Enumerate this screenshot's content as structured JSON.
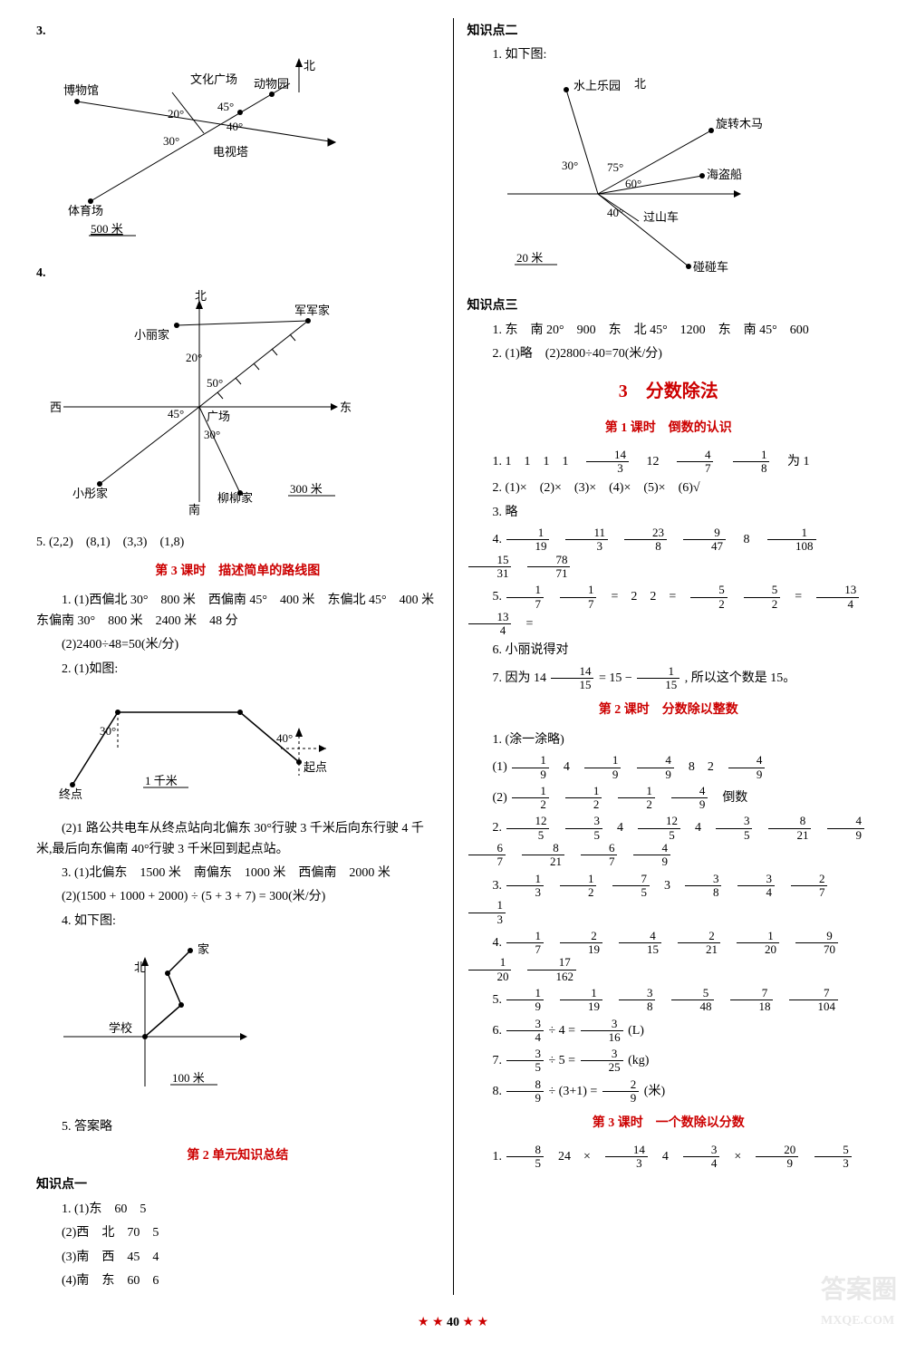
{
  "page_number": "40",
  "watermark1": "答案圈",
  "watermark2": "MXQE.COM",
  "left": {
    "q3": {
      "num": "3.",
      "labels": {
        "north": "北",
        "museum": "博物馆",
        "culture": "文化广场",
        "zoo": "动物园",
        "tv": "电视塔",
        "stadium": "体育场",
        "scale": "500 米",
        "a20": "20°",
        "a30": "30°",
        "a40": "40°",
        "a45": "45°"
      }
    },
    "q4": {
      "num": "4.",
      "labels": {
        "north": "北",
        "south": "南",
        "east": "东",
        "west": "西",
        "xiaoli": "小丽家",
        "junjun": "军军家",
        "xiaotong": "小彤家",
        "liuliu": "柳柳家",
        "plaza": "广场",
        "scale": "300 米",
        "a20": "20°",
        "a30": "30°",
        "a45": "45°",
        "a50": "50°"
      }
    },
    "q5": "5. (2,2)　(8,1)　(3,3)　(1,8)",
    "lesson3_title": "第 3 课时　描述简单的路线图",
    "l3_1a": "1. (1)西偏北 30°　800 米　西偏南 45°　400 米　东偏北 45°　400 米　东偏南 30°　800 米　2400 米　48 分",
    "l3_1b": "(2)2400÷48=50(米/分)",
    "l3_2a": "2. (1)如图:",
    "route_diagram": {
      "labels": {
        "start": "起点",
        "end": "终点",
        "scale": "1 千米",
        "a30": "30°",
        "a40": "40°"
      }
    },
    "l3_2b": "(2)1 路公共电车从终点站向北偏东 30°行驶 3 千米后向东行驶 4 千米,最后向东偏南 40°行驶 3 千米回到起点站。",
    "l3_3a": "3. (1)北偏东　1500 米　南偏东　1000 米　西偏南　2000 米",
    "l3_3b": "(2)(1500 + 1000 + 2000) ÷ (5 + 3 + 7) = 300(米/分)",
    "l3_4": "4. 如下图:",
    "home_diagram": {
      "labels": {
        "home": "家",
        "school": "学校",
        "north": "北",
        "scale": "100 米"
      }
    },
    "l3_5": "5. 答案略",
    "unit2_title": "第 2 单元知识总结",
    "kp1_title": "知识点一",
    "kp1_1": "1. (1)东　60　5",
    "kp1_2": "(2)西　北　70　5",
    "kp1_3": "(3)南　西　45　4",
    "kp1_4": "(4)南　东　60　6"
  },
  "right": {
    "kp2_title": "知识点二",
    "kp2_1": "1. 如下图:",
    "park_diagram": {
      "labels": {
        "water": "水上乐园",
        "north": "北",
        "carousel": "旋转木马",
        "pirate": "海盗船",
        "coaster": "过山车",
        "bumper": "碰碰车",
        "scale": "20 米",
        "a30": "30°",
        "a75": "75°",
        "a60": "60°",
        "a40": "40°"
      }
    },
    "kp3_title": "知识点三",
    "kp3_1": "1. 东　南 20°　900　东　北 45°　1200　东　南 45°　600",
    "kp3_2": "2. (1)略　(2)2800÷40=70(米/分)",
    "chapter3_title": "3　分数除法",
    "lesson1_title": "第 1 课时　倒数的认识",
    "c3l1_1_prefix": "1. 1　1　1　1　",
    "c3l1_1_f1": {
      "n": "14",
      "d": "3"
    },
    "c3l1_1_mid1": "　12　",
    "c3l1_1_f2": {
      "n": "4",
      "d": "7"
    },
    "c3l1_1_f3": {
      "n": "1",
      "d": "8"
    },
    "c3l1_1_suffix": "　为 1",
    "c3l1_2": "2. (1)×　(2)×　(3)×　(4)×　(5)×　(6)√",
    "c3l1_3": "3. 略",
    "c3l1_4_label": "4.",
    "c3l1_4_fracs": [
      {
        "n": "1",
        "d": "19"
      },
      {
        "n": "11",
        "d": "3"
      },
      {
        "n": "23",
        "d": "8"
      },
      {
        "n": "9",
        "d": "47"
      }
    ],
    "c3l1_4_mid": "　8　",
    "c3l1_4_fracs2": [
      {
        "n": "1",
        "d": "108"
      },
      {
        "n": "15",
        "d": "31"
      },
      {
        "n": "78",
        "d": "71"
      }
    ],
    "c3l1_5_label": "5.",
    "c3l1_5_parts": [
      {
        "f": {
          "n": "1",
          "d": "7"
        }
      },
      {
        "f": {
          "n": "1",
          "d": "7"
        }
      },
      {
        "t": "="
      },
      {
        "t": "2"
      },
      {
        "t": "2"
      },
      {
        "t": "="
      },
      {
        "f": {
          "n": "5",
          "d": "2"
        }
      },
      {
        "f": {
          "n": "5",
          "d": "2"
        }
      },
      {
        "t": "="
      },
      {
        "f": {
          "n": "13",
          "d": "4"
        }
      },
      {
        "f": {
          "n": "13",
          "d": "4"
        }
      },
      {
        "t": "="
      }
    ],
    "c3l1_6": "6. 小丽说得对",
    "c3l1_7_pre": "7. 因为 14",
    "c3l1_7_f1": {
      "n": "14",
      "d": "15"
    },
    "c3l1_7_mid": " = 15 − ",
    "c3l1_7_f2": {
      "n": "1",
      "d": "15"
    },
    "c3l1_7_suf": ", 所以这个数是 15。",
    "lesson2_title": "第 2 课时　分数除以整数",
    "c3l2_1": "1. (涂一涂略)",
    "c3l2_1a_label": "(1)",
    "c3l2_1a": [
      {
        "f": {
          "n": "1",
          "d": "9"
        }
      },
      {
        "t": "4"
      },
      {
        "f": {
          "n": "1",
          "d": "9"
        }
      },
      {
        "f": {
          "n": "4",
          "d": "9"
        }
      },
      {
        "t": "8"
      },
      {
        "t": "2"
      },
      {
        "f": {
          "n": "4",
          "d": "9"
        }
      }
    ],
    "c3l2_1b_label": "(2)",
    "c3l2_1b": [
      {
        "f": {
          "n": "1",
          "d": "2"
        }
      },
      {
        "f": {
          "n": "1",
          "d": "2"
        }
      },
      {
        "f": {
          "n": "1",
          "d": "2"
        }
      },
      {
        "f": {
          "n": "4",
          "d": "9"
        }
      },
      {
        "t": "倒数"
      }
    ],
    "c3l2_2_label": "2.",
    "c3l2_2": [
      {
        "f": {
          "n": "12",
          "d": "5"
        }
      },
      {
        "f": {
          "n": "3",
          "d": "5"
        }
      },
      {
        "t": "4"
      },
      {
        "f": {
          "n": "12",
          "d": "5"
        }
      },
      {
        "t": "4"
      },
      {
        "f": {
          "n": "3",
          "d": "5"
        }
      },
      {
        "f": {
          "n": "8",
          "d": "21"
        }
      },
      {
        "f": {
          "n": "4",
          "d": "9"
        }
      },
      {
        "f": {
          "n": "6",
          "d": "7"
        }
      },
      {
        "f": {
          "n": "8",
          "d": "21"
        }
      },
      {
        "f": {
          "n": "6",
          "d": "7"
        }
      },
      {
        "f": {
          "n": "4",
          "d": "9"
        }
      }
    ],
    "c3l2_3_label": "3.",
    "c3l2_3": [
      {
        "f": {
          "n": "1",
          "d": "3"
        }
      },
      {
        "f": {
          "n": "1",
          "d": "2"
        }
      },
      {
        "f": {
          "n": "7",
          "d": "5"
        }
      },
      {
        "t": "3"
      },
      {
        "f": {
          "n": "3",
          "d": "8"
        }
      },
      {
        "f": {
          "n": "3",
          "d": "4"
        }
      },
      {
        "f": {
          "n": "2",
          "d": "7"
        }
      },
      {
        "f": {
          "n": "1",
          "d": "3"
        }
      }
    ],
    "c3l2_4_label": "4.",
    "c3l2_4": [
      {
        "f": {
          "n": "1",
          "d": "7"
        }
      },
      {
        "f": {
          "n": "2",
          "d": "19"
        }
      },
      {
        "f": {
          "n": "4",
          "d": "15"
        }
      },
      {
        "f": {
          "n": "2",
          "d": "21"
        }
      },
      {
        "f": {
          "n": "1",
          "d": "20"
        }
      },
      {
        "f": {
          "n": "9",
          "d": "70"
        }
      },
      {
        "f": {
          "n": "1",
          "d": "20"
        }
      },
      {
        "f": {
          "n": "17",
          "d": "162"
        }
      }
    ],
    "c3l2_5_label": "5.",
    "c3l2_5": [
      {
        "f": {
          "n": "1",
          "d": "9"
        }
      },
      {
        "f": {
          "n": "1",
          "d": "19"
        }
      },
      {
        "f": {
          "n": "3",
          "d": "8"
        }
      },
      {
        "f": {
          "n": "5",
          "d": "48"
        }
      },
      {
        "f": {
          "n": "7",
          "d": "18"
        }
      },
      {
        "f": {
          "n": "7",
          "d": "104"
        }
      }
    ],
    "c3l2_6_pre": "6. ",
    "c3l2_6_f1": {
      "n": "3",
      "d": "4"
    },
    "c3l2_6_mid": " ÷ 4 = ",
    "c3l2_6_f2": {
      "n": "3",
      "d": "16"
    },
    "c3l2_6_suf": "(L)",
    "c3l2_7_pre": "7. ",
    "c3l2_7_f1": {
      "n": "3",
      "d": "5"
    },
    "c3l2_7_mid": " ÷ 5 = ",
    "c3l2_7_f2": {
      "n": "3",
      "d": "25"
    },
    "c3l2_7_suf": "(kg)",
    "c3l2_8_pre": "8. ",
    "c3l2_8_f1": {
      "n": "8",
      "d": "9"
    },
    "c3l2_8_mid": " ÷ (3+1) = ",
    "c3l2_8_f2": {
      "n": "2",
      "d": "9"
    },
    "c3l2_8_suf": "(米)",
    "lesson3b_title": "第 3 课时　一个数除以分数",
    "c3l3_1_label": "1.",
    "c3l3_1": [
      {
        "f": {
          "n": "8",
          "d": "5"
        }
      },
      {
        "t": "24"
      },
      {
        "t": "×"
      },
      {
        "f": {
          "n": "14",
          "d": "3"
        }
      },
      {
        "t": "4"
      },
      {
        "f": {
          "n": "3",
          "d": "4"
        }
      },
      {
        "t": "×"
      },
      {
        "f": {
          "n": "20",
          "d": "9"
        }
      },
      {
        "f": {
          "n": "5",
          "d": "3"
        }
      }
    ]
  }
}
